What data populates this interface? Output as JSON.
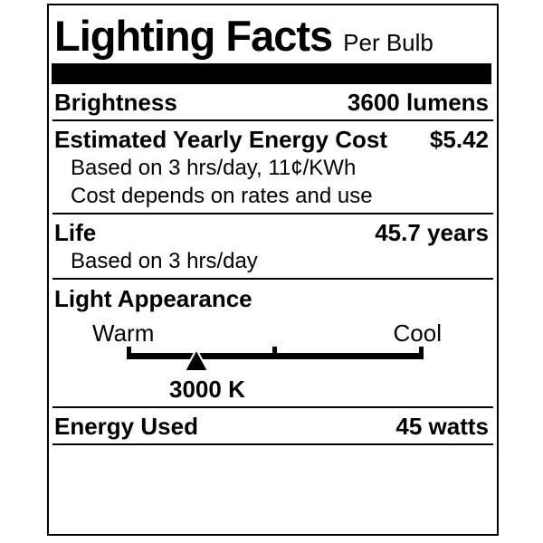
{
  "label": {
    "title": "Lighting Facts",
    "subtitle": "Per Bulb",
    "colors": {
      "ink": "#000000",
      "background": "#ffffff"
    },
    "rows": {
      "brightness": {
        "name": "Brightness",
        "value": "3600 lumens"
      },
      "energy_cost": {
        "name": "Estimated Yearly Energy Cost",
        "value": "$5.42",
        "notes": [
          "Based on 3 hrs/day, 11¢/KWh",
          "Cost depends on rates and use"
        ]
      },
      "life": {
        "name": "Life",
        "value": "45.7 years",
        "notes": [
          "Based on 3 hrs/day"
        ]
      },
      "light_appearance": {
        "name": "Light Appearance",
        "warm_label": "Warm",
        "cool_label": "Cool",
        "kelvin_label": "3000 K",
        "marker_position_pct": 23.5
      },
      "energy_used": {
        "name": "Energy Used",
        "value": "45 watts"
      }
    }
  }
}
